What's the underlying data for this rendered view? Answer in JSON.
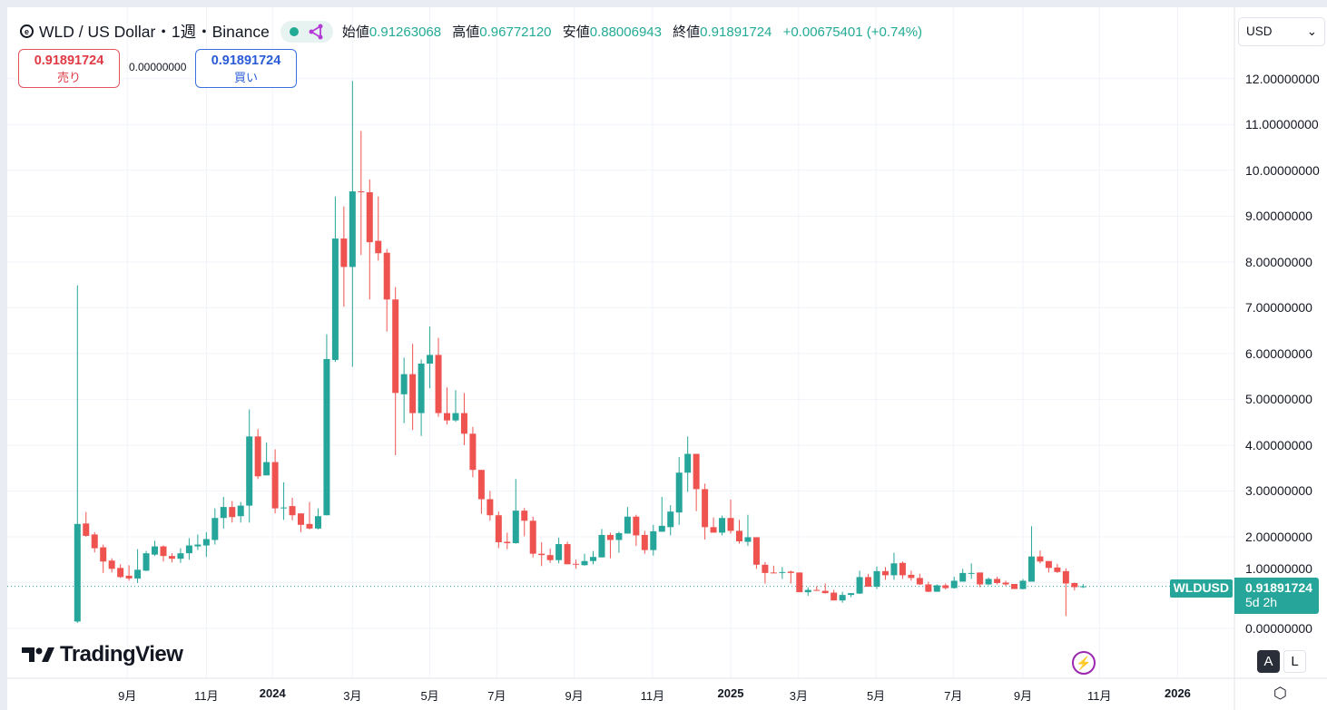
{
  "header": {
    "symbol_icon": "worldcoin-icon",
    "title": "WLD / US Dollar・1週・Binance",
    "open_label": "始値",
    "open": "0.91263068",
    "high_label": "高値",
    "high": "0.96772120",
    "low_label": "安値",
    "low": "0.88006943",
    "close_label": "終値",
    "close": "0.91891724",
    "change": "+0.00675401 (+0.74%)"
  },
  "trade": {
    "sell_price": "0.91891724",
    "sell_label": "売り",
    "spread": "0.00000000",
    "buy_price": "0.91891724",
    "buy_label": "買い"
  },
  "currency_select": "USD",
  "price_tag": {
    "symbol": "WLDUSD",
    "price": "0.91891724",
    "countdown": "5d 2h"
  },
  "scale_buttons": {
    "auto": "A",
    "log": "L"
  },
  "logo": "TradingView",
  "colors": {
    "up": "#26a69a",
    "down": "#ef5350",
    "accent": "#22ab94"
  },
  "chart_data": {
    "type": "candlestick",
    "ylim": [
      0,
      12
    ],
    "y_ticks": [
      "12.00000000",
      "11.00000000",
      "10.00000000",
      "9.00000000",
      "8.00000000",
      "7.00000000",
      "6.00000000",
      "5.00000000",
      "4.00000000",
      "3.00000000",
      "2.00000000",
      "1.00000000",
      "0.00000000"
    ],
    "x_ticks": [
      {
        "label": "9月",
        "i": 5.8,
        "bold": false
      },
      {
        "label": "11月",
        "i": 15,
        "bold": false
      },
      {
        "label": "2024",
        "i": 22.7,
        "bold": true
      },
      {
        "label": "3月",
        "i": 32,
        "bold": false
      },
      {
        "label": "5月",
        "i": 41,
        "bold": false
      },
      {
        "label": "7月",
        "i": 48.8,
        "bold": false
      },
      {
        "label": "9月",
        "i": 57.8,
        "bold": false
      },
      {
        "label": "11月",
        "i": 66.9,
        "bold": false
      },
      {
        "label": "2025",
        "i": 76,
        "bold": true
      },
      {
        "label": "3月",
        "i": 83.9,
        "bold": false
      },
      {
        "label": "5月",
        "i": 92.9,
        "bold": false
      },
      {
        "label": "7月",
        "i": 101.9,
        "bold": false
      },
      {
        "label": "9月",
        "i": 110,
        "bold": false
      },
      {
        "label": "11月",
        "i": 118.9,
        "bold": false
      },
      {
        "label": "2026",
        "i": 128,
        "bold": true
      }
    ],
    "last_price": 0.91891724,
    "ohlc": [
      [
        0.15,
        7.49,
        0.12,
        2.28
      ],
      [
        2.29,
        2.54,
        2.0,
        2.02
      ],
      [
        2.05,
        2.1,
        1.66,
        1.75
      ],
      [
        1.77,
        1.83,
        1.21,
        1.46
      ],
      [
        1.48,
        1.53,
        1.22,
        1.3
      ],
      [
        1.32,
        1.4,
        1.1,
        1.12
      ],
      [
        1.15,
        1.38,
        1.04,
        1.09
      ],
      [
        1.09,
        1.73,
        0.99,
        1.28
      ],
      [
        1.26,
        1.69,
        1.25,
        1.64
      ],
      [
        1.61,
        1.91,
        1.58,
        1.79
      ],
      [
        1.79,
        1.81,
        1.46,
        1.58
      ],
      [
        1.58,
        1.64,
        1.44,
        1.52
      ],
      [
        1.52,
        1.75,
        1.43,
        1.64
      ],
      [
        1.64,
        1.97,
        1.5,
        1.81
      ],
      [
        1.79,
        2.05,
        1.71,
        1.83
      ],
      [
        1.81,
        2.1,
        1.56,
        1.95
      ],
      [
        1.93,
        2.62,
        1.83,
        2.41
      ],
      [
        2.41,
        2.87,
        2.18,
        2.65
      ],
      [
        2.65,
        2.78,
        2.31,
        2.43
      ],
      [
        2.45,
        2.76,
        2.31,
        2.68
      ],
      [
        2.68,
        4.78,
        2.31,
        4.19
      ],
      [
        4.19,
        4.35,
        3.26,
        3.32
      ],
      [
        3.34,
        4.06,
        3.34,
        3.63
      ],
      [
        3.63,
        3.91,
        2.51,
        2.62
      ],
      [
        2.62,
        3.19,
        2.37,
        2.64
      ],
      [
        2.67,
        2.85,
        2.36,
        2.47
      ],
      [
        2.51,
        2.51,
        2.1,
        2.26
      ],
      [
        2.28,
        2.76,
        2.16,
        2.18
      ],
      [
        2.18,
        2.62,
        2.16,
        2.45
      ],
      [
        2.47,
        6.42,
        2.47,
        5.88
      ],
      [
        5.86,
        9.43,
        5.82,
        8.51
      ],
      [
        8.51,
        9.21,
        7.02,
        7.89
      ],
      [
        7.89,
        11.95,
        5.71,
        9.54
      ],
      [
        9.54,
        10.86,
        8.15,
        9.52
      ],
      [
        9.52,
        9.8,
        7.18,
        8.43
      ],
      [
        8.46,
        9.43,
        8.03,
        8.19
      ],
      [
        8.2,
        8.28,
        6.48,
        7.18
      ],
      [
        7.18,
        7.45,
        3.78,
        5.14
      ],
      [
        5.11,
        5.91,
        4.48,
        5.55
      ],
      [
        5.55,
        6.21,
        4.33,
        4.7
      ],
      [
        4.7,
        5.87,
        4.2,
        5.78
      ],
      [
        5.78,
        6.59,
        5.24,
        5.97
      ],
      [
        5.97,
        6.34,
        4.62,
        4.7
      ],
      [
        4.7,
        5.26,
        4.45,
        4.54
      ],
      [
        4.54,
        5.2,
        4.51,
        4.7
      ],
      [
        4.7,
        5.14,
        4.0,
        4.25
      ],
      [
        4.25,
        4.4,
        3.3,
        3.46
      ],
      [
        3.46,
        3.46,
        2.5,
        2.82
      ],
      [
        2.82,
        3.0,
        2.35,
        2.47
      ],
      [
        2.47,
        2.55,
        1.75,
        1.88
      ],
      [
        1.89,
        2.09,
        1.73,
        1.86
      ],
      [
        1.86,
        3.26,
        1.85,
        2.57
      ],
      [
        2.57,
        2.63,
        2.01,
        2.35
      ],
      [
        2.35,
        2.44,
        1.55,
        1.63
      ],
      [
        1.63,
        1.88,
        1.36,
        1.6
      ],
      [
        1.6,
        1.74,
        1.43,
        1.49
      ],
      [
        1.49,
        1.98,
        1.42,
        1.84
      ],
      [
        1.84,
        1.89,
        1.4,
        1.4
      ],
      [
        1.41,
        1.5,
        1.3,
        1.4
      ],
      [
        1.38,
        1.63,
        1.37,
        1.47
      ],
      [
        1.47,
        1.69,
        1.4,
        1.56
      ],
      [
        1.55,
        2.17,
        1.55,
        2.04
      ],
      [
        2.04,
        2.09,
        1.53,
        1.93
      ],
      [
        1.93,
        2.11,
        1.65,
        2.08
      ],
      [
        2.07,
        2.65,
        2.07,
        2.44
      ],
      [
        2.44,
        2.48,
        1.8,
        2.03
      ],
      [
        2.04,
        2.13,
        1.63,
        1.71
      ],
      [
        1.71,
        2.26,
        1.59,
        2.12
      ],
      [
        2.11,
        2.87,
        2.11,
        2.24
      ],
      [
        2.21,
        2.69,
        2.03,
        2.55
      ],
      [
        2.53,
        3.74,
        2.26,
        3.4
      ],
      [
        3.4,
        4.19,
        2.98,
        3.81
      ],
      [
        3.81,
        3.81,
        2.56,
        3.04
      ],
      [
        3.04,
        3.16,
        1.94,
        2.21
      ],
      [
        2.21,
        2.42,
        2.09,
        2.09
      ],
      [
        2.09,
        2.46,
        2.03,
        2.41
      ],
      [
        2.41,
        2.81,
        2.07,
        2.13
      ],
      [
        2.13,
        2.37,
        1.85,
        1.9
      ],
      [
        1.89,
        2.48,
        1.8,
        1.99
      ],
      [
        1.99,
        1.99,
        1.3,
        1.39
      ],
      [
        1.39,
        1.45,
        0.98,
        1.21
      ],
      [
        1.22,
        1.37,
        1.21,
        1.21
      ],
      [
        1.21,
        1.34,
        1.08,
        1.23
      ],
      [
        1.24,
        1.26,
        0.98,
        1.21
      ],
      [
        1.22,
        1.22,
        0.79,
        0.79
      ],
      [
        0.79,
        0.9,
        0.71,
        0.84
      ],
      [
        0.84,
        0.92,
        0.82,
        0.82
      ],
      [
        0.82,
        0.98,
        0.76,
        0.77
      ],
      [
        0.78,
        0.84,
        0.61,
        0.61
      ],
      [
        0.61,
        0.8,
        0.56,
        0.73
      ],
      [
        0.73,
        0.77,
        0.68,
        0.77
      ],
      [
        0.76,
        1.26,
        0.75,
        1.12
      ],
      [
        1.12,
        1.19,
        0.91,
        0.91
      ],
      [
        0.91,
        1.35,
        0.86,
        1.25
      ],
      [
        1.25,
        1.34,
        1.06,
        1.16
      ],
      [
        1.16,
        1.65,
        1.06,
        1.42
      ],
      [
        1.43,
        1.46,
        1.08,
        1.16
      ],
      [
        1.17,
        1.26,
        1.04,
        1.1
      ],
      [
        1.1,
        1.19,
        0.95,
        0.96
      ],
      [
        0.96,
        1.02,
        0.79,
        0.8
      ],
      [
        0.8,
        0.96,
        0.8,
        0.94
      ],
      [
        0.94,
        0.98,
        0.85,
        0.88
      ],
      [
        0.88,
        1.13,
        0.87,
        1.04
      ],
      [
        1.02,
        1.3,
        1.02,
        1.21
      ],
      [
        1.21,
        1.42,
        1.08,
        1.21
      ],
      [
        1.22,
        1.22,
        0.9,
        0.96
      ],
      [
        0.96,
        1.11,
        0.94,
        1.08
      ],
      [
        1.08,
        1.13,
        0.96,
        0.99
      ],
      [
        1.0,
        1.04,
        0.93,
        0.96
      ],
      [
        0.97,
        0.97,
        0.86,
        0.86
      ],
      [
        0.86,
        1.08,
        0.85,
        1.04
      ],
      [
        1.02,
        2.23,
        1.02,
        1.57
      ],
      [
        1.57,
        1.7,
        1.42,
        1.46
      ],
      [
        1.47,
        1.47,
        1.22,
        1.32
      ],
      [
        1.33,
        1.41,
        1.21,
        1.23
      ],
      [
        1.25,
        1.31,
        0.27,
        0.98
      ],
      [
        0.99,
        1.0,
        0.83,
        0.9
      ],
      [
        0.91263068,
        0.9677212,
        0.88006943,
        0.91891724
      ]
    ]
  }
}
